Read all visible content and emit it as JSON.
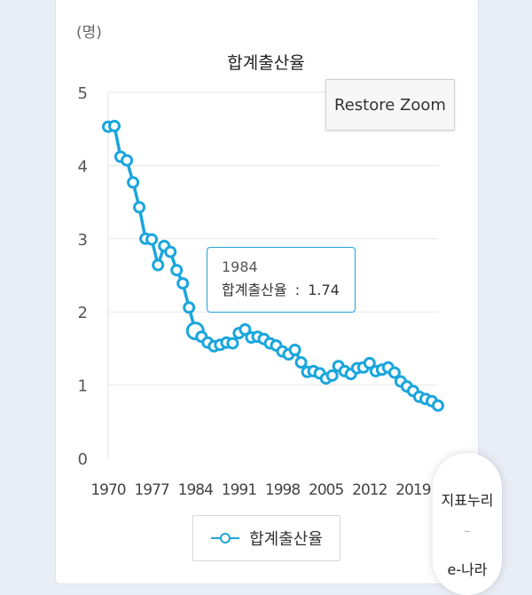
{
  "chart_data": {
    "type": "line",
    "title": "합계출산율",
    "unit_label": "(명)",
    "x_ticks": [
      "1970",
      "1977",
      "1984",
      "1991",
      "1998",
      "2005",
      "2012",
      "2019"
    ],
    "y_ticks": [
      "0",
      "1",
      "2",
      "3",
      "4",
      "5"
    ],
    "ylim": [
      0,
      5
    ],
    "xlim": [
      1970,
      2023
    ],
    "grid": true,
    "legend_position": "bottom",
    "series": [
      {
        "name": "합계출산율",
        "color": "#1aa6dc",
        "x": [
          1970,
          1971,
          1972,
          1973,
          1974,
          1975,
          1976,
          1977,
          1978,
          1979,
          1980,
          1981,
          1982,
          1983,
          1984,
          1985,
          1986,
          1987,
          1988,
          1989,
          1990,
          1991,
          1992,
          1993,
          1994,
          1995,
          1996,
          1997,
          1998,
          1999,
          2000,
          2001,
          2002,
          2003,
          2004,
          2005,
          2006,
          2007,
          2008,
          2009,
          2010,
          2011,
          2012,
          2013,
          2014,
          2015,
          2016,
          2017,
          2018,
          2019,
          2020,
          2021,
          2022,
          2023
        ],
        "y": [
          4.53,
          4.54,
          4.12,
          4.07,
          3.77,
          3.43,
          3.0,
          2.99,
          2.64,
          2.9,
          2.82,
          2.57,
          2.39,
          2.06,
          1.74,
          1.66,
          1.58,
          1.53,
          1.55,
          1.58,
          1.57,
          1.71,
          1.76,
          1.65,
          1.66,
          1.63,
          1.57,
          1.54,
          1.46,
          1.42,
          1.48,
          1.31,
          1.18,
          1.19,
          1.16,
          1.09,
          1.13,
          1.26,
          1.19,
          1.15,
          1.23,
          1.24,
          1.3,
          1.19,
          1.21,
          1.24,
          1.17,
          1.05,
          0.98,
          0.92,
          0.84,
          0.81,
          0.78,
          0.72
        ]
      }
    ]
  },
  "tooltip": {
    "year": "1984",
    "label": "합계출산율",
    "separator": ":",
    "value": "1.74"
  },
  "restore_zoom_label": "Restore Zoom",
  "legend_label": "합계출산율",
  "side_panel": {
    "item1": "지표누리",
    "divider": "–",
    "item2": "e-나라"
  }
}
